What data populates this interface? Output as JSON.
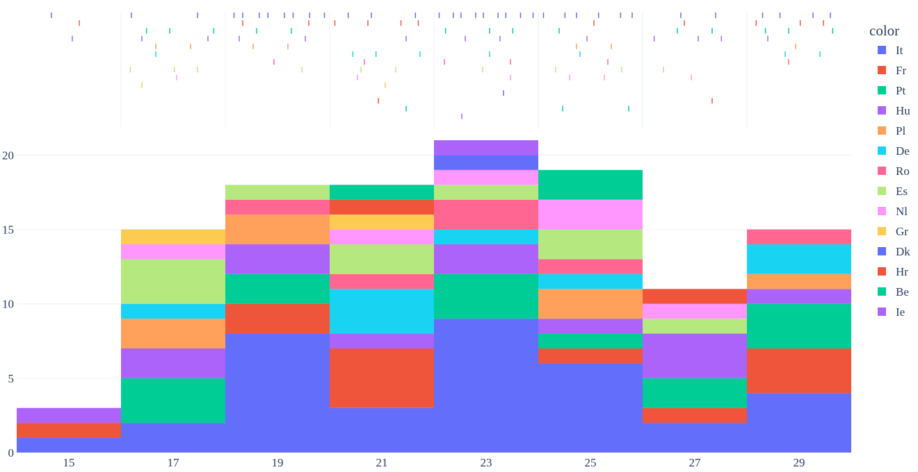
{
  "chart_data": {
    "type": "histogram",
    "barmode": "stack",
    "marginal": "rug",
    "legend": {
      "title": "color",
      "position": "right"
    },
    "x_bins": [
      14,
      16,
      18,
      20,
      22,
      24,
      26,
      28,
      30
    ],
    "x_ticks": [
      15,
      17,
      19,
      21,
      23,
      25,
      27,
      29
    ],
    "ylim": [
      0,
      21
    ],
    "y_ticks": [
      0,
      5,
      10,
      15,
      20
    ],
    "grid": true,
    "series": [
      {
        "name": "It",
        "color": "#636efa",
        "values": [
          1,
          2,
          8,
          3,
          9,
          6,
          2,
          4
        ]
      },
      {
        "name": "Fr",
        "color": "#ef553b",
        "values": [
          1,
          0,
          2,
          4,
          0,
          1,
          1,
          3
        ]
      },
      {
        "name": "Pt",
        "color": "#00cc96",
        "values": [
          0,
          3,
          2,
          0,
          3,
          1,
          2,
          3
        ]
      },
      {
        "name": "Hu",
        "color": "#ab63fa",
        "values": [
          1,
          2,
          2,
          1,
          2,
          1,
          3,
          1
        ]
      },
      {
        "name": "Pl",
        "color": "#ffa15a",
        "values": [
          0,
          2,
          2,
          0,
          0,
          2,
          0,
          1
        ]
      },
      {
        "name": "De",
        "color": "#19d3f3",
        "values": [
          0,
          1,
          0,
          3,
          1,
          1,
          0,
          2
        ]
      },
      {
        "name": "Ro",
        "color": "#ff6692",
        "values": [
          0,
          0,
          1,
          1,
          2,
          1,
          0,
          1
        ]
      },
      {
        "name": "Es",
        "color": "#b6e880",
        "values": [
          0,
          3,
          1,
          2,
          1,
          2,
          1,
          0
        ]
      },
      {
        "name": "Nl",
        "color": "#ff97ff",
        "values": [
          0,
          1,
          0,
          1,
          1,
          2,
          1,
          0
        ]
      },
      {
        "name": "Gr",
        "color": "#fecb52",
        "values": [
          0,
          1,
          0,
          1,
          0,
          0,
          0,
          0
        ]
      },
      {
        "name": "Dk",
        "color": "#636efa",
        "values": [
          0,
          0,
          0,
          0,
          1,
          0,
          0,
          0
        ]
      },
      {
        "name": "Hr",
        "color": "#ef553b",
        "values": [
          0,
          0,
          0,
          1,
          0,
          0,
          1,
          0
        ]
      },
      {
        "name": "Be",
        "color": "#00cc96",
        "values": [
          0,
          0,
          0,
          1,
          0,
          2,
          0,
          0
        ]
      },
      {
        "name": "Ie",
        "color": "#ab63fa",
        "values": [
          0,
          0,
          0,
          0,
          1,
          0,
          0,
          0
        ]
      }
    ]
  }
}
